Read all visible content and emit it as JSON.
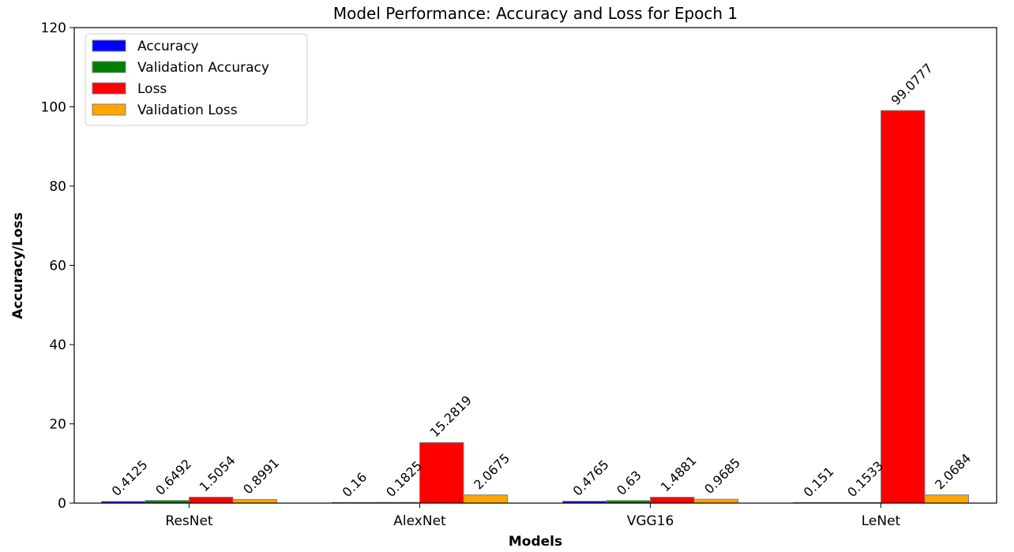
{
  "chart_data": {
    "type": "bar",
    "title": "Model Performance: Accuracy and Loss for Epoch 1",
    "xlabel": "Models",
    "ylabel": "Accuracy/Loss",
    "categories": [
      "ResNet",
      "AlexNet",
      "VGG16",
      "LeNet"
    ],
    "ylim": [
      0,
      120
    ],
    "yticks": [
      0,
      20,
      40,
      60,
      80,
      100,
      120
    ],
    "legend_position": "top-left",
    "grid": false,
    "series": [
      {
        "name": "Accuracy",
        "color": "#0000ff",
        "values": [
          0.4125,
          0.16,
          0.4765,
          0.151
        ],
        "labels": [
          "0.4125",
          "0.16",
          "0.4765",
          "0.151"
        ]
      },
      {
        "name": "Validation Accuracy",
        "color": "#008000",
        "values": [
          0.6492,
          0.1825,
          0.63,
          0.1533
        ],
        "labels": [
          "0.6492",
          "0.1825",
          "0.63",
          "0.1533"
        ]
      },
      {
        "name": "Loss",
        "color": "#ff0000",
        "values": [
          1.5054,
          15.2819,
          1.4881,
          99.0777
        ],
        "labels": [
          "1.5054",
          "15.2819",
          "1.4881",
          "99.0777"
        ]
      },
      {
        "name": "Validation Loss",
        "color": "#ffa500",
        "values": [
          0.8991,
          2.0675,
          0.9685,
          2.0684
        ],
        "labels": [
          "0.8991",
          "2.0675",
          "0.9685",
          "2.0684"
        ]
      }
    ]
  }
}
